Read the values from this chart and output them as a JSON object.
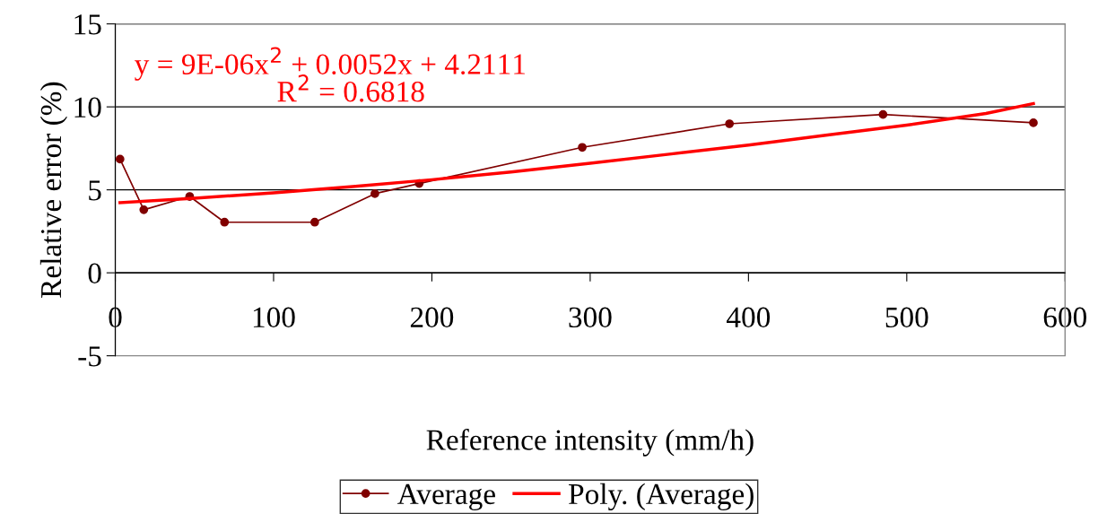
{
  "chart_data": {
    "type": "line",
    "xlabel": "Reference intensity (mm/h)",
    "ylabel": "Relative error (%)",
    "series": [
      {
        "name": "Average",
        "color": "#800000",
        "marker": "circle",
        "x": [
          3,
          18,
          47,
          69,
          126,
          164,
          192,
          295,
          388,
          485,
          580
        ],
        "values": [
          6.85,
          3.8,
          4.6,
          3.05,
          3.05,
          4.77,
          5.38,
          7.56,
          8.98,
          9.54,
          9.04
        ]
      },
      {
        "name": "Poly. (Average)",
        "color": "#ff0000",
        "marker": "none",
        "x": [
          3,
          50,
          100,
          150,
          200,
          250,
          300,
          350,
          400,
          450,
          500,
          550,
          580
        ],
        "values": [
          4.23,
          4.49,
          4.82,
          5.2,
          5.61,
          6.07,
          6.6,
          7.15,
          7.7,
          8.3,
          8.9,
          9.6,
          10.2
        ]
      }
    ],
    "xlim": [
      0,
      600
    ],
    "xticks": [
      0,
      100,
      200,
      300,
      400,
      500,
      600
    ],
    "ylim": [
      -5,
      15
    ],
    "yticks": [
      -5,
      0,
      5,
      10,
      15
    ],
    "grid": "y",
    "legend": "bottom",
    "annotations": [
      "y = 9E-06x$^{2}$ + 0.0052x + 4.2111",
      "R$^{2}$ = 0.6818"
    ]
  }
}
